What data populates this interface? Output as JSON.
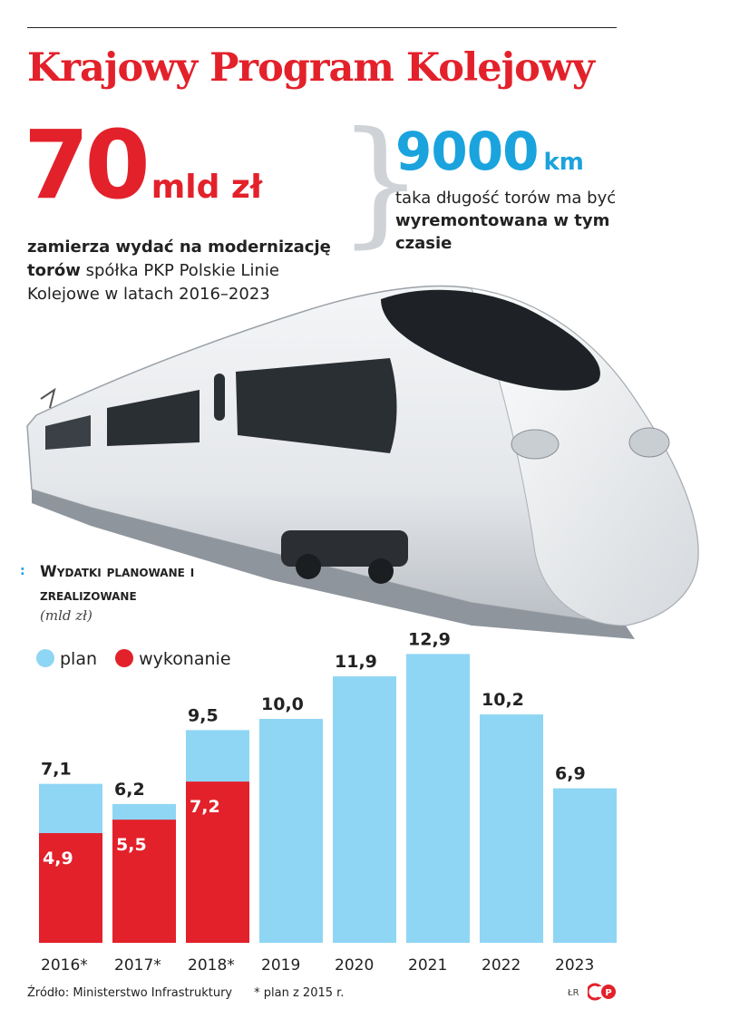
{
  "header": {
    "title": "Krajowy Program Kolejowy"
  },
  "highlight_left": {
    "value": "70",
    "unit": "mld zł",
    "desc_bold": "zamierza wydać na modernizację torów",
    "desc_rest": " spółka PKP Polskie Linie Kolejowe w latach 2016–2023"
  },
  "highlight_right": {
    "value": "9000",
    "unit": "km",
    "desc_rest": "taka długość torów ma być ",
    "desc_bold": "wyremontowana w tym czasie"
  },
  "chart_header": {
    "title": "Wydatki planowane i zrealizowane",
    "unit": "(mld zł)"
  },
  "colors": {
    "plan": "#8fd6f4",
    "wykonanie": "#e3212b",
    "title": "#e3212b",
    "accent_blue": "#1aa3dd"
  },
  "chart_data": {
    "type": "bar",
    "categories": [
      "2016*",
      "2017*",
      "2018*",
      "2019",
      "2020",
      "2021",
      "2022",
      "2023"
    ],
    "series": [
      {
        "name": "plan",
        "values": [
          7.1,
          6.2,
          9.5,
          10.0,
          11.9,
          12.9,
          10.2,
          6.9
        ],
        "labels": [
          "7,1",
          "6,2",
          "9,5",
          "10,0",
          "11,9",
          "12,9",
          "10,2",
          "6,9"
        ]
      },
      {
        "name": "wykonanie",
        "values": [
          4.9,
          5.5,
          7.2,
          null,
          null,
          null,
          null,
          null
        ],
        "labels": [
          "4,9",
          "5,5",
          "7,2",
          "",
          "",
          "",
          "",
          ""
        ]
      }
    ],
    "legend_position": "top-left",
    "ylim": [
      0,
      12.9
    ],
    "grid": false
  },
  "footer": {
    "source": "Źródło: Ministerstwo Infrastruktury",
    "note": "* plan z 2015 r.",
    "credit": "ŁR"
  }
}
